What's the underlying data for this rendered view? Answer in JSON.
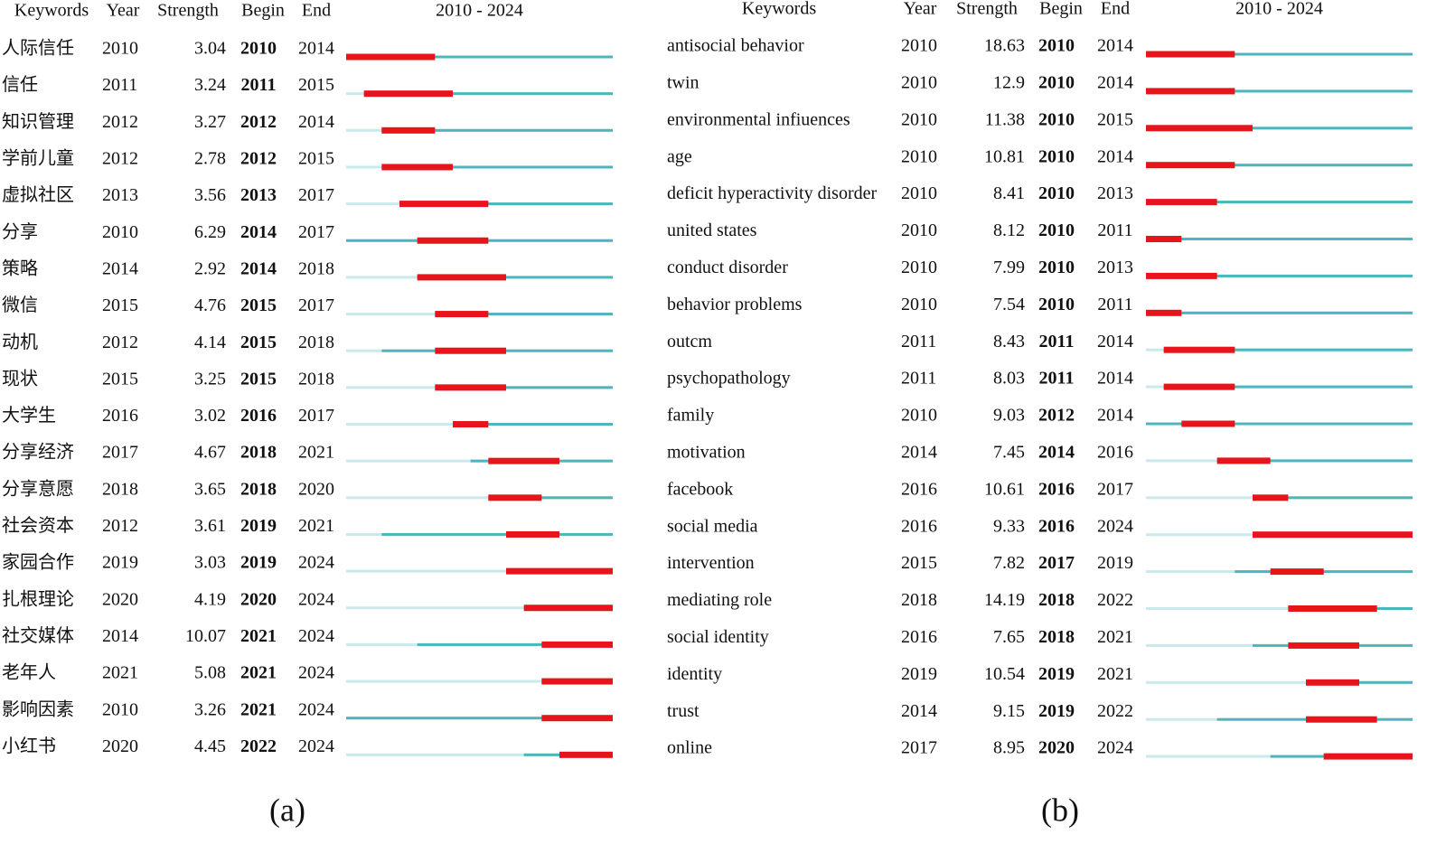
{
  "panels": [
    {
      "label": "(a)",
      "headers": {
        "keyword": "Keywords",
        "year": "Year",
        "strength": "Strength",
        "begin": "Begin",
        "end": "End",
        "range": "2010 - 2024"
      },
      "range": [
        2010,
        2024
      ],
      "rows": [
        [
          "人际信任",
          2010,
          3.04,
          2010,
          2014
        ],
        [
          "信任",
          2011,
          3.24,
          2011,
          2015
        ],
        [
          "知识管理",
          2012,
          3.27,
          2012,
          2014
        ],
        [
          "学前儿童",
          2012,
          2.78,
          2012,
          2015
        ],
        [
          "虚拟社区",
          2013,
          3.56,
          2013,
          2017
        ],
        [
          "分享",
          2010,
          6.29,
          2014,
          2017
        ],
        [
          "策略",
          2014,
          2.92,
          2014,
          2018
        ],
        [
          "微信",
          2015,
          4.76,
          2015,
          2017
        ],
        [
          "动机",
          2012,
          4.14,
          2015,
          2018
        ],
        [
          "现状",
          2015,
          3.25,
          2015,
          2018
        ],
        [
          "大学生",
          2016,
          3.02,
          2016,
          2017
        ],
        [
          "分享经济",
          2017,
          4.67,
          2018,
          2021
        ],
        [
          "分享意愿",
          2018,
          3.65,
          2018,
          2020
        ],
        [
          "社会资本",
          2012,
          3.61,
          2019,
          2021
        ],
        [
          "家园合作",
          2019,
          3.03,
          2019,
          2024
        ],
        [
          "扎根理论",
          2020,
          4.19,
          2020,
          2024
        ],
        [
          "社交媒体",
          2014,
          10.07,
          2021,
          2024
        ],
        [
          "老年人",
          2021,
          5.08,
          2021,
          2024
        ],
        [
          "影响因素",
          2010,
          3.26,
          2021,
          2024
        ],
        [
          "小红书",
          2020,
          4.45,
          2022,
          2024
        ]
      ]
    },
    {
      "label": "(b)",
      "headers": {
        "keyword": "Keywords",
        "year": "Year",
        "strength": "Strength",
        "begin": "Begin",
        "end": "End",
        "range": "2010 - 2024"
      },
      "range": [
        2010,
        2024
      ],
      "rows": [
        [
          "antisocial behavior",
          2010,
          18.63,
          2010,
          2014
        ],
        [
          "twin",
          2010,
          12.9,
          2010,
          2014
        ],
        [
          "environmental infiuences",
          2010,
          11.38,
          2010,
          2015
        ],
        [
          "age",
          2010,
          10.81,
          2010,
          2014
        ],
        [
          "deficit hyperactivity disorder",
          2010,
          8.41,
          2010,
          2013
        ],
        [
          "united states",
          2010,
          8.12,
          2010,
          2011
        ],
        [
          "conduct disorder",
          2010,
          7.99,
          2010,
          2013
        ],
        [
          "behavior problems",
          2010,
          7.54,
          2010,
          2011
        ],
        [
          "outcm",
          2011,
          8.43,
          2011,
          2014
        ],
        [
          "psychopathology",
          2011,
          8.03,
          2011,
          2014
        ],
        [
          "family",
          2010,
          9.03,
          2012,
          2014
        ],
        [
          "motivation",
          2014,
          7.45,
          2014,
          2016
        ],
        [
          "facebook",
          2016,
          10.61,
          2016,
          2017
        ],
        [
          "social media",
          2016,
          9.33,
          2016,
          2024
        ],
        [
          "intervention",
          2015,
          7.82,
          2017,
          2019
        ],
        [
          "mediating role",
          2018,
          14.19,
          2018,
          2022
        ],
        [
          "social identity",
          2016,
          7.65,
          2018,
          2021
        ],
        [
          "identity",
          2019,
          10.54,
          2019,
          2021
        ],
        [
          "trust",
          2014,
          9.15,
          2019,
          2022
        ],
        [
          "online",
          2017,
          8.95,
          2020,
          2024
        ]
      ]
    }
  ]
}
